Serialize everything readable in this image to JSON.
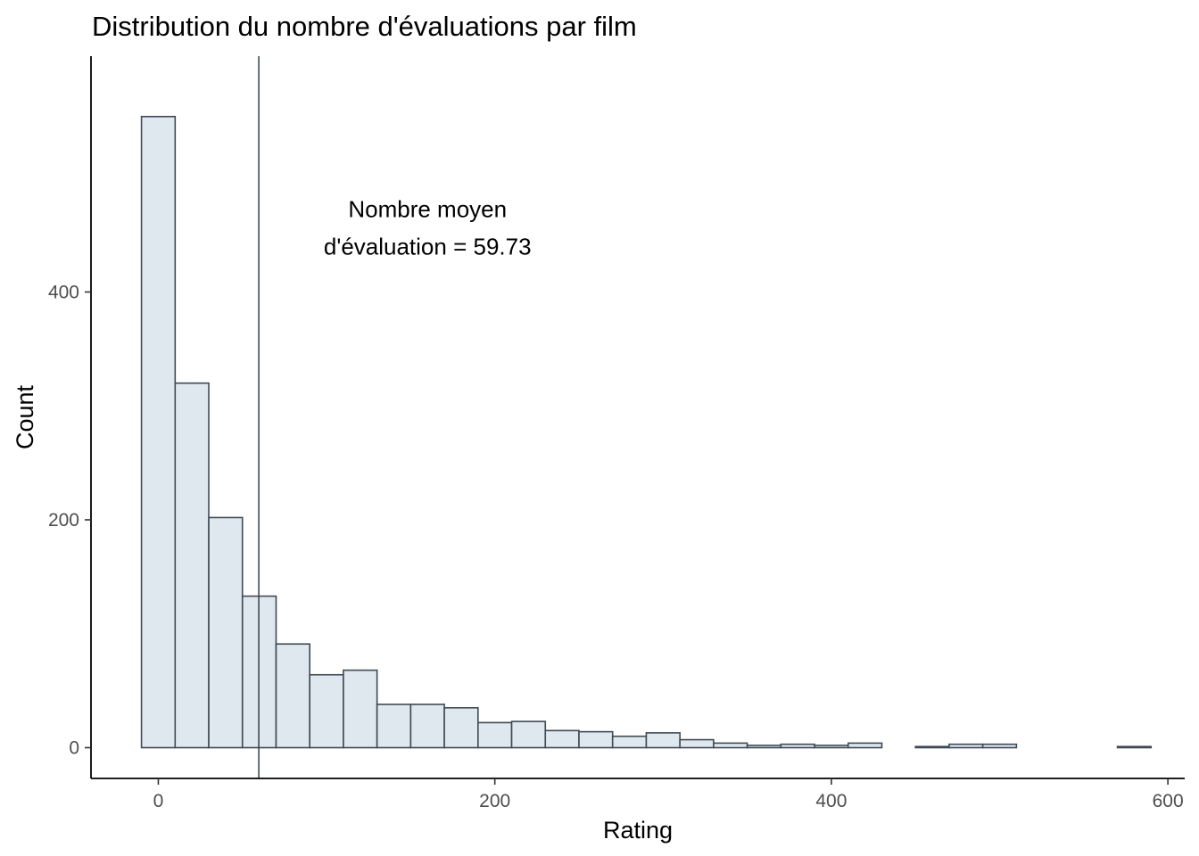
{
  "chart_data": {
    "type": "bar",
    "title": "Distribution du nombre d'évaluations par film",
    "xlabel": "Rating",
    "ylabel": "Count",
    "xlim": [
      -40,
      610
    ],
    "ylim": [
      -27,
      607
    ],
    "bin_width": 20,
    "x_ticks": [
      0,
      200,
      400,
      600
    ],
    "y_ticks": [
      0,
      200,
      400
    ],
    "bins": [
      {
        "x0": -10,
        "x1": 10,
        "count": 554
      },
      {
        "x0": 10,
        "x1": 30,
        "count": 320
      },
      {
        "x0": 30,
        "x1": 50,
        "count": 202
      },
      {
        "x0": 50,
        "x1": 70,
        "count": 133
      },
      {
        "x0": 70,
        "x1": 90,
        "count": 91
      },
      {
        "x0": 90,
        "x1": 110,
        "count": 64
      },
      {
        "x0": 110,
        "x1": 130,
        "count": 68
      },
      {
        "x0": 130,
        "x1": 150,
        "count": 38
      },
      {
        "x0": 150,
        "x1": 170,
        "count": 38
      },
      {
        "x0": 170,
        "x1": 190,
        "count": 35
      },
      {
        "x0": 190,
        "x1": 210,
        "count": 22
      },
      {
        "x0": 210,
        "x1": 230,
        "count": 23
      },
      {
        "x0": 230,
        "x1": 250,
        "count": 15
      },
      {
        "x0": 250,
        "x1": 270,
        "count": 14
      },
      {
        "x0": 270,
        "x1": 290,
        "count": 10
      },
      {
        "x0": 290,
        "x1": 310,
        "count": 13
      },
      {
        "x0": 310,
        "x1": 330,
        "count": 7
      },
      {
        "x0": 330,
        "x1": 350,
        "count": 4
      },
      {
        "x0": 350,
        "x1": 370,
        "count": 2
      },
      {
        "x0": 370,
        "x1": 390,
        "count": 3
      },
      {
        "x0": 390,
        "x1": 410,
        "count": 2
      },
      {
        "x0": 410,
        "x1": 430,
        "count": 4
      },
      {
        "x0": 430,
        "x1": 450,
        "count": 0
      },
      {
        "x0": 450,
        "x1": 470,
        "count": 1
      },
      {
        "x0": 470,
        "x1": 490,
        "count": 3
      },
      {
        "x0": 490,
        "x1": 510,
        "count": 3
      },
      {
        "x0": 510,
        "x1": 530,
        "count": 0
      },
      {
        "x0": 530,
        "x1": 550,
        "count": 0
      },
      {
        "x0": 550,
        "x1": 570,
        "count": 0
      },
      {
        "x0": 570,
        "x1": 590,
        "count": 1
      }
    ],
    "mean_line": {
      "x": 59.73
    },
    "annotation": {
      "lines": [
        "Nombre moyen",
        "d'évaluation = 59.73"
      ],
      "x": 160,
      "y": 440
    },
    "colors": {
      "bar_fill": "#dfe7ef",
      "bar_stroke": "#3f4a54",
      "mean_line": "#3f4a54",
      "axis": "#000000"
    },
    "grid": false,
    "legend": "none"
  }
}
